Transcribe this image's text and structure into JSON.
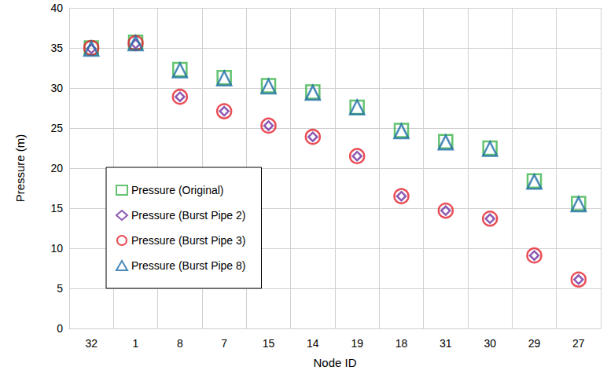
{
  "chart_data": {
    "type": "scatter",
    "x_label": "Node ID",
    "y_label": "Pressure (m)",
    "categories": [
      "32",
      "1",
      "8",
      "7",
      "15",
      "14",
      "19",
      "18",
      "31",
      "30",
      "29",
      "27"
    ],
    "ylim": [
      0,
      40
    ],
    "yticks": [
      0,
      5,
      10,
      15,
      20,
      25,
      30,
      35,
      40
    ],
    "grid": true,
    "legend": "center left",
    "series": [
      {
        "name": "Pressure (Original)",
        "color": "#3cb44b",
        "marker": "square",
        "values": [
          35.0,
          35.7,
          32.3,
          31.3,
          30.3,
          29.5,
          27.6,
          24.7,
          23.3,
          22.5,
          18.4,
          15.6
        ]
      },
      {
        "name": "Pressure (Burst Pipe 2)",
        "color": "#7030a0",
        "marker": "diamond",
        "values": [
          34.9,
          35.5,
          28.9,
          27.1,
          25.3,
          23.9,
          21.5,
          16.5,
          14.7,
          13.7,
          9.1,
          6.1
        ]
      },
      {
        "name": "Pressure (Burst Pipe 3)",
        "color": "#e3202a",
        "marker": "circle",
        "values": [
          35.0,
          35.6,
          28.9,
          27.1,
          25.3,
          23.9,
          21.5,
          16.5,
          14.7,
          13.7,
          9.1,
          6.1
        ]
      },
      {
        "name": "Pressure (Burst Pipe 8)",
        "color": "#1f6ea8",
        "marker": "triangle",
        "values": [
          34.9,
          35.6,
          32.2,
          31.2,
          30.2,
          29.4,
          27.6,
          24.6,
          23.2,
          22.4,
          18.3,
          15.5
        ]
      }
    ]
  }
}
